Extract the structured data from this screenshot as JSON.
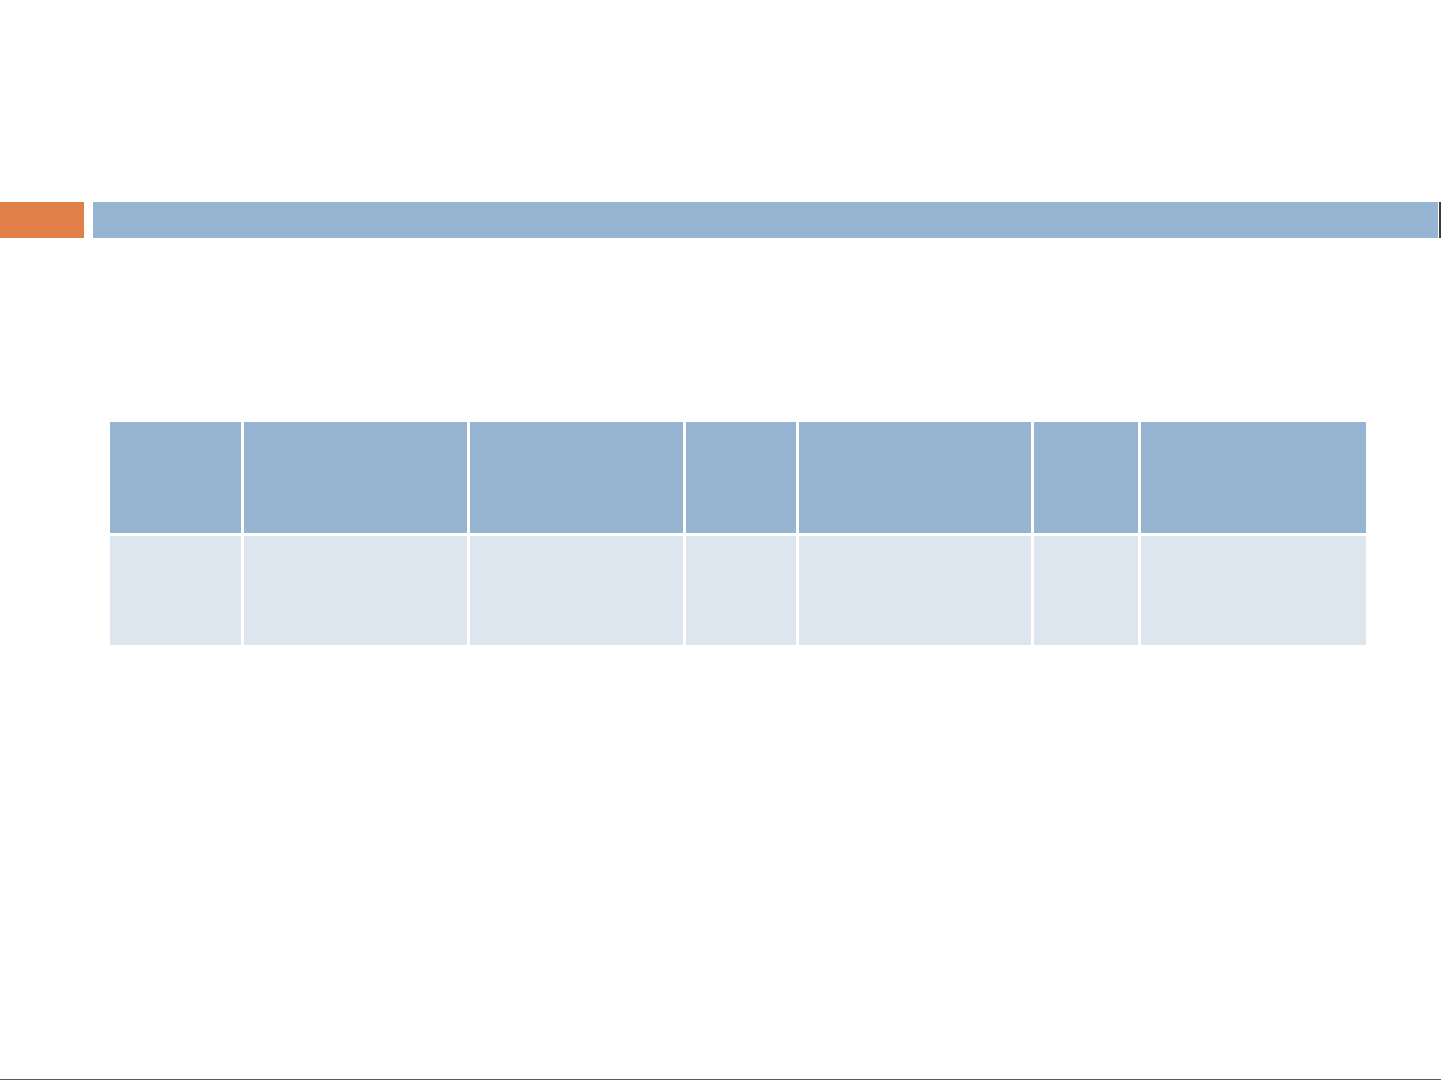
{
  "colors": {
    "accent": "#E07F4A",
    "header_fill": "#95B5D3",
    "body_fill": "#DDE5EE"
  },
  "slide": {
    "title": ""
  },
  "table": {
    "headers": [
      "",
      "",
      "",
      "",
      "",
      "",
      ""
    ],
    "rows": [
      [
        "",
        "",
        "",
        "",
        "",
        "",
        ""
      ]
    ]
  }
}
